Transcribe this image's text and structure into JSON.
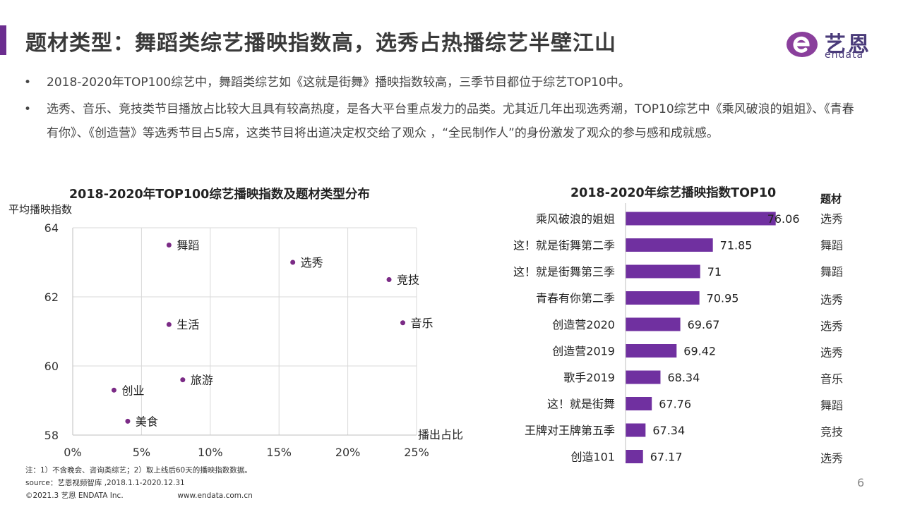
{
  "header": {
    "title": "题材类型：舞蹈类综艺播映指数高，选秀占热播综艺半壁江山",
    "logo_cn": "艺恩",
    "logo_en": "endata"
  },
  "bullets": [
    {
      "marker": "•",
      "text": "2018-2020年TOP100综艺中，舞蹈类综艺如《这就是街舞》播映指数较高，三季节目都位于综艺TOP10中。"
    },
    {
      "marker": "•",
      "text": "选秀、音乐、竞技类节目播放占比较大且具有较高热度，是各大平台重点发力的品类。尤其近几年出现选秀潮，TOP10综艺中《乘风破浪的姐姐》、《青春有你》、《创造营》等选秀节目占5席，这类节目将出道决定权交给了观众 ，“全民制作人”的身份激发了观众的参与感和成就感。"
    }
  ],
  "chart_data": [
    {
      "type": "scatter",
      "title": "2018-2020年TOP100综艺播映指数及题材类型分布",
      "ylabel": "平均播映指数",
      "xlabel": "播出占比",
      "xlim": [
        0,
        25
      ],
      "ylim": [
        58,
        64
      ],
      "x_ticks": [
        "0%",
        "5%",
        "10%",
        "15%",
        "20%",
        "25%"
      ],
      "y_ticks": [
        "58",
        "60",
        "62",
        "64"
      ],
      "point_color": "#7b2b86",
      "points": [
        {
          "label": "舞蹈",
          "x": 7,
          "y": 63.5
        },
        {
          "label": "选秀",
          "x": 16,
          "y": 63.0
        },
        {
          "label": "竞技",
          "x": 23,
          "y": 62.5
        },
        {
          "label": "生活",
          "x": 7,
          "y": 61.2
        },
        {
          "label": "音乐",
          "x": 24,
          "y": 61.25
        },
        {
          "label": "旅游",
          "x": 8,
          "y": 59.6
        },
        {
          "label": "创业",
          "x": 3,
          "y": 59.3
        },
        {
          "label": "美食",
          "x": 4,
          "y": 58.4
        }
      ]
    },
    {
      "type": "bar",
      "orientation": "horizontal",
      "title": "2018-2020年综艺播映指数TOP10",
      "extra_column_header": "题材",
      "bar_color": "#7030a0",
      "xlim": [
        66,
        76.5
      ],
      "categories": [
        "乘风破浪的姐姐",
        "这！就是街舞第二季",
        "这！就是街舞第三季",
        "青春有你第二季",
        "创造营2020",
        "创造营2019",
        "歌手2019",
        "这！就是街舞",
        "王牌对王牌第五季",
        "创造101"
      ],
      "values": [
        76.06,
        71.85,
        71,
        70.95,
        69.67,
        69.42,
        68.34,
        67.76,
        67.34,
        67.17
      ],
      "value_labels": [
        "76.06",
        "71.85",
        "71",
        "70.95",
        "69.67",
        "69.42",
        "68.34",
        "67.76",
        "67.34",
        "67.17"
      ],
      "genres": [
        "选秀",
        "舞蹈",
        "舞蹈",
        "选秀",
        "选秀",
        "选秀",
        "音乐",
        "舞蹈",
        "竞技",
        "选秀"
      ]
    }
  ],
  "footer": {
    "note": "注：1）不含晚会、咨询类综艺；2）取上线后60天的播映指数数据。",
    "source": "source：艺恩视频智库 ,2018.1.1-2020.12.31",
    "copyright": "©2021.3 艺恩 ENDATA Inc.",
    "website": "www.endata.com.cn",
    "page_number": "6"
  }
}
